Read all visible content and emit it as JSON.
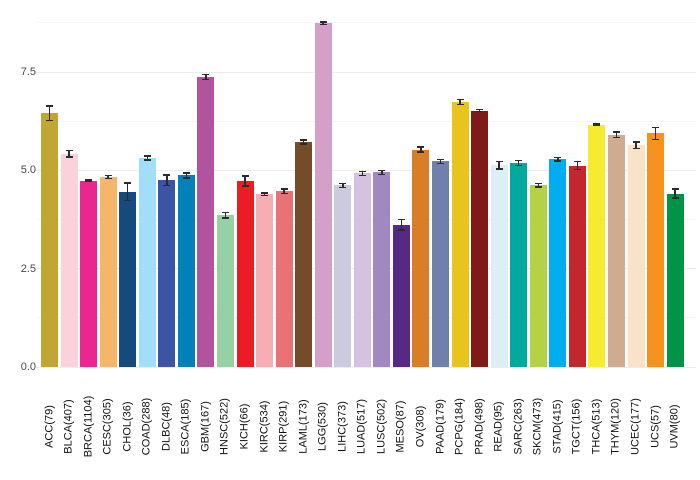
{
  "chart_data": {
    "type": "bar",
    "title": "",
    "xlabel": "",
    "ylabel": "",
    "categories": [
      "ACC(79)",
      "BLCA(407)",
      "BRCA(1104)",
      "CESC(305)",
      "CHOL(36)",
      "COAD(288)",
      "DLBC(48)",
      "ESCA(185)",
      "GBM(167)",
      "HNSC(522)",
      "KICH(66)",
      "KIRC(534)",
      "KIRP(291)",
      "LAML(173)",
      "LGG(530)",
      "LIHC(373)",
      "LUAD(517)",
      "LUSC(502)",
      "MESO(87)",
      "OV(308)",
      "PAAD(179)",
      "PCPG(184)",
      "PRAD(498)",
      "READ(95)",
      "SARC(263)",
      "SKCM(473)",
      "STAD(415)",
      "TGCT(156)",
      "THCA(513)",
      "THYM(120)",
      "UCEC(177)",
      "UCS(57)",
      "UVM(80)"
    ],
    "values": [
      6.45,
      5.42,
      4.74,
      4.83,
      4.46,
      5.32,
      4.75,
      4.87,
      7.37,
      3.86,
      4.73,
      4.39,
      4.47,
      5.72,
      8.74,
      4.62,
      4.92,
      4.95,
      3.62,
      5.53,
      5.23,
      6.74,
      6.52,
      5.13,
      5.19,
      4.62,
      5.28,
      5.12,
      6.16,
      5.91,
      5.64,
      5.94,
      4.41
    ],
    "errors": [
      0.2,
      0.1,
      0.04,
      0.06,
      0.24,
      0.07,
      0.15,
      0.08,
      0.08,
      0.09,
      0.15,
      0.05,
      0.08,
      0.07,
      0.05,
      0.07,
      0.07,
      0.07,
      0.15,
      0.08,
      0.07,
      0.08,
      0.04,
      0.12,
      0.08,
      0.06,
      0.06,
      0.12,
      0.04,
      0.09,
      0.1,
      0.17,
      0.13
    ],
    "bar_colors": [
      "#c2a633",
      "#fad2db",
      "#ec268f",
      "#f4b669",
      "#16497e",
      "#a1def7",
      "#3b54a3",
      "#0281b8",
      "#b2539f",
      "#97d0a4",
      "#ec1c24",
      "#f6aeb5",
      "#ea7277",
      "#754c29",
      "#d49fc9",
      "#cccbdd",
      "#d5c2e0",
      "#a188c0",
      "#562a84",
      "#d97d26",
      "#7080aa",
      "#e8c51d",
      "#7f1a17",
      "#ddeef7",
      "#00a99d",
      "#b5d146",
      "#00aeef",
      "#c1272d",
      "#f5ec31",
      "#cfac8f",
      "#f9e3c8",
      "#f6921e",
      "#009444"
    ],
    "error_bar_color": "#2b2b2b",
    "ylim": [
      0,
      9.1
    ],
    "yticks": [
      0,
      2.5,
      5,
      7.5
    ],
    "ytick_labels": [
      "0.0",
      "2.5",
      "5.0",
      "7.5"
    ],
    "minor_gridlines": [
      1.25,
      3.75,
      6.25,
      8.75
    ],
    "grid": "on",
    "legend": "none",
    "background": "#ffffff"
  }
}
